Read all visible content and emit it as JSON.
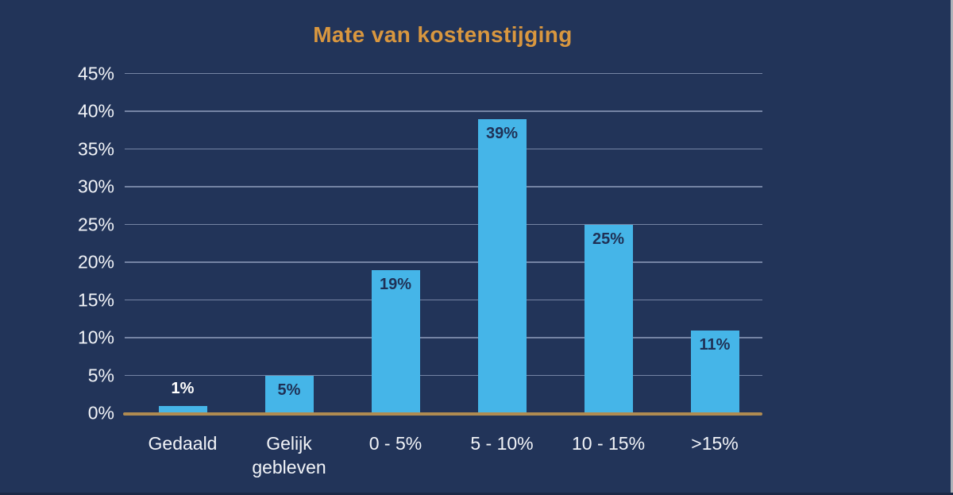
{
  "chart_data": {
    "type": "bar",
    "title": "Mate van kostenstijging",
    "categories": [
      "Gedaald",
      "Gelijk gebleven",
      "0 - 5%",
      "5 - 10%",
      "10 - 15%",
      ">15%"
    ],
    "values": [
      1,
      5,
      19,
      39,
      25,
      11
    ],
    "data_labels": [
      "1%",
      "5%",
      "19%",
      "39%",
      "25%",
      "11%"
    ],
    "xlabel": "",
    "ylabel": "",
    "ylim": [
      0,
      45
    ],
    "ytick_step": 5,
    "ytick_labels": [
      "0%",
      "5%",
      "10%",
      "15%",
      "20%",
      "25%",
      "30%",
      "35%",
      "40%",
      "45%"
    ],
    "grid": true,
    "legend": false,
    "colors": {
      "background": "#223459",
      "bar": "#45B5E8",
      "title": "#D9973F",
      "axis_line": "#B08B51",
      "gridline": "#8493B2",
      "tick_label": "#F2F4F8",
      "bar_label_inside": "#1F3156",
      "bar_label_outside": "#FFFFFF",
      "window_right_edge": "#ADB2B9",
      "window_bottom_edge": "#1B2946"
    }
  }
}
